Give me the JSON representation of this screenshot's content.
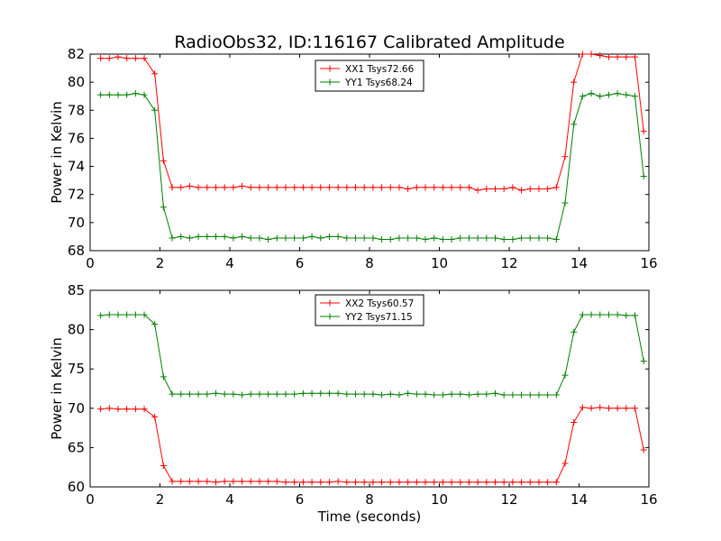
{
  "figure": {
    "title": "RadioObs32, ID:116167 Calibrated Amplitude"
  },
  "chart_data": [
    {
      "type": "line",
      "xlabel": "",
      "ylabel": "Power in Kelvin",
      "xlim": [
        0,
        16
      ],
      "ylim": [
        68,
        82
      ],
      "xticks": [
        "0",
        "2",
        "4",
        "6",
        "8",
        "10",
        "12",
        "14",
        "16"
      ],
      "yticks": [
        "68",
        "70",
        "72",
        "74",
        "76",
        "78",
        "80",
        "82"
      ],
      "grid": false,
      "legend_position": "top-center",
      "x": [
        0.3,
        0.55,
        0.8,
        1.05,
        1.3,
        1.55,
        1.85,
        2.1,
        2.35,
        2.6,
        2.85,
        3.1,
        3.35,
        3.6,
        3.85,
        4.1,
        4.35,
        4.6,
        4.85,
        5.1,
        5.35,
        5.6,
        5.85,
        6.1,
        6.35,
        6.6,
        6.85,
        7.1,
        7.35,
        7.6,
        7.85,
        8.1,
        8.35,
        8.6,
        8.85,
        9.1,
        9.35,
        9.6,
        9.85,
        10.1,
        10.35,
        10.6,
        10.85,
        11.1,
        11.35,
        11.6,
        11.85,
        12.1,
        12.35,
        12.6,
        12.85,
        13.1,
        13.35,
        13.6,
        13.85,
        14.1,
        14.35,
        14.6,
        14.85,
        15.1,
        15.35,
        15.6,
        15.85
      ],
      "series": [
        {
          "name": "XX1 Tsys72.66",
          "color": "#ff0000",
          "values": [
            81.7,
            81.7,
            81.8,
            81.7,
            81.7,
            81.7,
            80.6,
            74.4,
            72.5,
            72.5,
            72.6,
            72.5,
            72.5,
            72.5,
            72.5,
            72.5,
            72.6,
            72.5,
            72.5,
            72.5,
            72.5,
            72.5,
            72.5,
            72.5,
            72.5,
            72.5,
            72.5,
            72.5,
            72.5,
            72.5,
            72.5,
            72.5,
            72.5,
            72.5,
            72.5,
            72.4,
            72.5,
            72.5,
            72.5,
            72.5,
            72.5,
            72.5,
            72.5,
            72.3,
            72.4,
            72.4,
            72.4,
            72.5,
            72.3,
            72.4,
            72.4,
            72.4,
            72.5,
            74.7,
            80.0,
            82.0,
            82.0,
            81.9,
            81.8,
            81.8,
            81.8,
            81.8,
            76.5
          ]
        },
        {
          "name": "YY1 Tsys68.24",
          "color": "#008000",
          "values": [
            79.1,
            79.1,
            79.1,
            79.1,
            79.2,
            79.1,
            78.0,
            71.1,
            68.9,
            69.0,
            68.9,
            69.0,
            69.0,
            69.0,
            69.0,
            68.9,
            69.0,
            68.9,
            68.9,
            68.8,
            68.9,
            68.9,
            68.9,
            68.9,
            69.0,
            68.9,
            69.0,
            69.0,
            68.9,
            68.9,
            68.9,
            68.9,
            68.8,
            68.8,
            68.9,
            68.9,
            68.9,
            68.8,
            68.9,
            68.8,
            68.8,
            68.9,
            68.9,
            68.9,
            68.9,
            68.9,
            68.8,
            68.8,
            68.9,
            68.9,
            68.9,
            68.9,
            68.8,
            71.4,
            77.0,
            79.0,
            79.2,
            79.0,
            79.1,
            79.2,
            79.1,
            79.0,
            73.3
          ]
        }
      ]
    },
    {
      "type": "line",
      "xlabel": "Time (seconds)",
      "ylabel": "Power in Kelvin",
      "xlim": [
        0,
        16
      ],
      "ylim": [
        60,
        85
      ],
      "xticks": [
        "0",
        "2",
        "4",
        "6",
        "8",
        "10",
        "12",
        "14",
        "16"
      ],
      "yticks": [
        "60",
        "65",
        "70",
        "75",
        "80",
        "85"
      ],
      "grid": false,
      "legend_position": "top-center",
      "x": [
        0.3,
        0.55,
        0.8,
        1.05,
        1.3,
        1.55,
        1.85,
        2.1,
        2.35,
        2.6,
        2.85,
        3.1,
        3.35,
        3.6,
        3.85,
        4.1,
        4.35,
        4.6,
        4.85,
        5.1,
        5.35,
        5.6,
        5.85,
        6.1,
        6.35,
        6.6,
        6.85,
        7.1,
        7.35,
        7.6,
        7.85,
        8.1,
        8.35,
        8.6,
        8.85,
        9.1,
        9.35,
        9.6,
        9.85,
        10.1,
        10.35,
        10.6,
        10.85,
        11.1,
        11.35,
        11.6,
        11.85,
        12.1,
        12.35,
        12.6,
        12.85,
        13.1,
        13.35,
        13.6,
        13.85,
        14.1,
        14.35,
        14.6,
        14.85,
        15.1,
        15.35,
        15.6,
        15.85
      ],
      "series": [
        {
          "name": "XX2 Tsys60.57",
          "color": "#ff0000",
          "values": [
            69.9,
            70.0,
            69.9,
            69.9,
            69.9,
            69.9,
            68.9,
            62.7,
            60.7,
            60.7,
            60.7,
            60.7,
            60.7,
            60.6,
            60.7,
            60.7,
            60.7,
            60.7,
            60.7,
            60.7,
            60.7,
            60.6,
            60.6,
            60.6,
            60.6,
            60.6,
            60.6,
            60.7,
            60.6,
            60.6,
            60.6,
            60.6,
            60.6,
            60.6,
            60.6,
            60.6,
            60.6,
            60.6,
            60.6,
            60.6,
            60.6,
            60.6,
            60.6,
            60.6,
            60.6,
            60.6,
            60.6,
            60.6,
            60.6,
            60.6,
            60.6,
            60.6,
            60.6,
            63.0,
            68.2,
            70.1,
            70.0,
            70.1,
            70.0,
            70.0,
            70.0,
            70.0,
            64.7
          ]
        },
        {
          "name": "YY2 Tsys71.15",
          "color": "#008000",
          "values": [
            81.8,
            81.9,
            81.9,
            81.9,
            81.9,
            81.9,
            80.7,
            74.0,
            71.8,
            71.8,
            71.8,
            71.8,
            71.8,
            71.9,
            71.8,
            71.8,
            71.7,
            71.8,
            71.8,
            71.8,
            71.8,
            71.8,
            71.8,
            71.9,
            71.9,
            71.9,
            71.9,
            71.9,
            71.8,
            71.8,
            71.8,
            71.8,
            71.7,
            71.8,
            71.7,
            71.9,
            71.8,
            71.8,
            71.7,
            71.7,
            71.8,
            71.8,
            71.7,
            71.8,
            71.8,
            71.9,
            71.7,
            71.7,
            71.7,
            71.7,
            71.7,
            71.7,
            71.7,
            74.2,
            79.7,
            81.9,
            81.9,
            81.9,
            81.9,
            81.9,
            81.8,
            81.8,
            76.0
          ]
        }
      ]
    }
  ]
}
